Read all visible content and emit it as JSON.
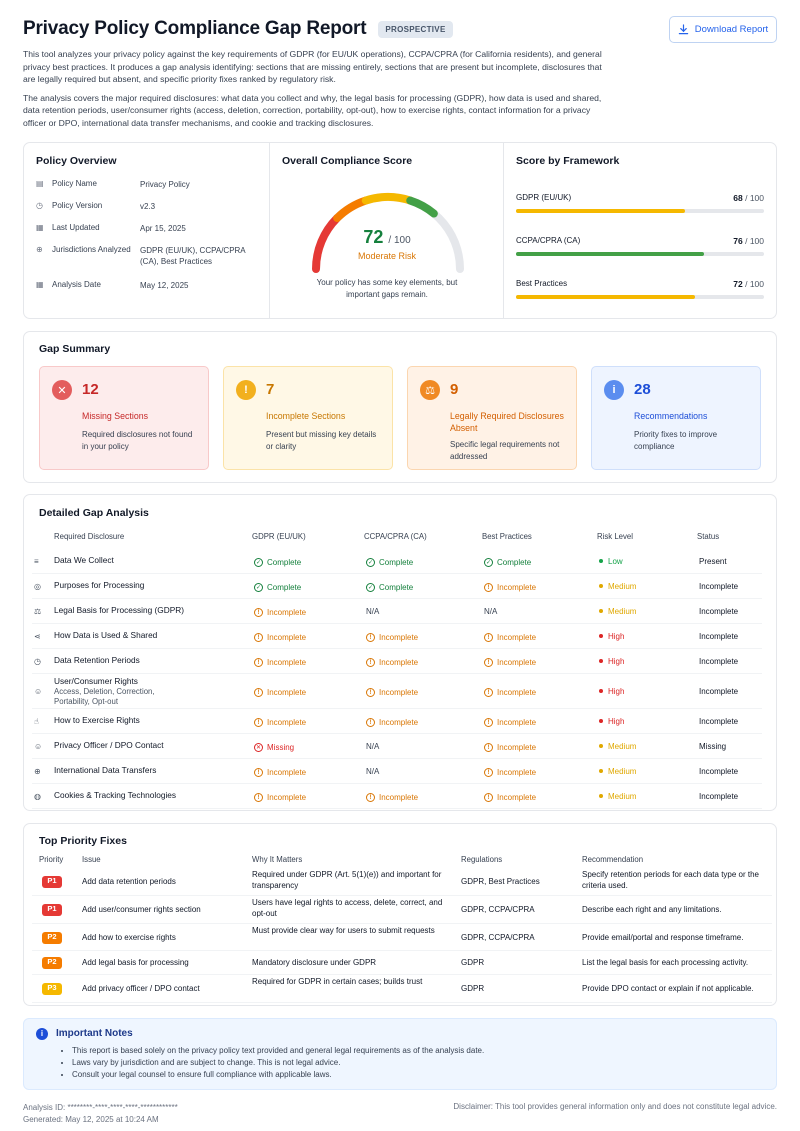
{
  "header": {
    "title": "Privacy Policy Compliance Gap Report",
    "badge": "PROSPECTIVE",
    "download_label": "Download Report",
    "intro_p1": "This tool analyzes your privacy policy against the key requirements of GDPR (for EU/UK operations), CCPA/CPRA (for California residents), and general privacy best practices. It produces a gap analysis identifying: sections that are missing entirely, sections that are present but incomplete, disclosures that are legally required but absent, and specific priority fixes ranked by regulatory risk.",
    "intro_p2": "The analysis covers the major required disclosures: what data you collect and why, the legal basis for processing (GDPR), how data is used and shared, data retention periods, user/consumer rights (access, deletion, correction, portability, opt-out), how to exercise rights, contact information for a privacy officer or DPO, international data transfer mechanisms, and cookie and tracking disclosures."
  },
  "overview": {
    "title": "Policy Overview",
    "rows": [
      {
        "icon": "document-icon",
        "key": "Policy Name",
        "value": "Privacy Policy"
      },
      {
        "icon": "clock-icon",
        "key": "Policy Version",
        "value": "v2.3"
      },
      {
        "icon": "calendar-icon",
        "key": "Last Updated",
        "value": "Apr 15, 2025"
      },
      {
        "icon": "globe-icon",
        "key": "Jurisdictions Analyzed",
        "value": "GDPR (EU/UK), CCPA/CPRA (CA), Best Practices"
      },
      {
        "icon": "calendar-icon",
        "key": "Analysis Date",
        "value": "May 12, 2025"
      }
    ]
  },
  "score": {
    "title": "Overall Compliance Score",
    "value": "72",
    "max": "/ 100",
    "fraction": 0.72,
    "risk": "Moderate Risk",
    "message": "Your policy has some key elements, but important gaps remain."
  },
  "frameworks": {
    "title": "Score by Framework",
    "items": [
      {
        "name": "GDPR (EU/UK)",
        "score": "68",
        "max": "/ 100",
        "fraction": 0.68,
        "color": "#f5b800"
      },
      {
        "name": "CCPA/CPRA (CA)",
        "score": "76",
        "max": "/ 100",
        "fraction": 0.76,
        "color": "#43a047"
      },
      {
        "name": "Best Practices",
        "score": "72",
        "max": "/ 100",
        "fraction": 0.72,
        "color": "#f5b800"
      }
    ]
  },
  "gap_summary": {
    "title": "Gap Summary",
    "tiles": [
      {
        "icon": "x-circle-icon",
        "glyph": "✕",
        "count": "12",
        "label": "Missing Sections",
        "desc": "Required disclosures not found in your policy",
        "bg": "#fdecec",
        "border": "#f8c9c9",
        "accent": "#c62828",
        "icon_bg": "#e35d5d"
      },
      {
        "icon": "alert-circle-icon",
        "glyph": "!",
        "count": "7",
        "label": "Incomplete Sections",
        "desc": "Present but missing key details or clarity",
        "bg": "#fff8e6",
        "border": "#fbe3a8",
        "accent": "#c77700",
        "icon_bg": "#f2b01e"
      },
      {
        "icon": "scales-icon",
        "glyph": "⚖",
        "count": "9",
        "label": "Legally Required Disclosures Absent",
        "desc": "Specific legal requirements not addressed",
        "bg": "#fff2e6",
        "border": "#fbd6b0",
        "accent": "#d35f00",
        "icon_bg": "#f08a24"
      },
      {
        "icon": "info-icon",
        "glyph": "i",
        "count": "28",
        "label": "Recommendations",
        "desc": "Priority fixes to improve compliance",
        "bg": "#eef4ff",
        "border": "#cfdffb",
        "accent": "#1d4ed8",
        "icon_bg": "#5b8def"
      }
    ]
  },
  "detail": {
    "title": "Detailed Gap Analysis",
    "headers": [
      "Required Disclosure",
      "GDPR (EU/UK)",
      "CCPA/CPRA (CA)",
      "Best Practices",
      "Risk Level",
      "Status"
    ],
    "rows": [
      {
        "icon": "database-icon",
        "glyph": "≡",
        "name": "Data We Collect",
        "sub": "",
        "gdpr": "Complete",
        "ccpa": "Complete",
        "best": "Complete",
        "risk": "Low",
        "status": "Present"
      },
      {
        "icon": "target-icon",
        "glyph": "◎",
        "name": "Purposes for Processing",
        "sub": "",
        "gdpr": "Complete",
        "ccpa": "Complete",
        "best": "Incomplete",
        "risk": "Medium",
        "status": "Incomplete"
      },
      {
        "icon": "scales-icon",
        "glyph": "⚖",
        "name": "Legal Basis for Processing (GDPR)",
        "sub": "",
        "gdpr": "Incomplete",
        "ccpa": "N/A",
        "best": "N/A",
        "risk": "Medium",
        "status": "Incomplete"
      },
      {
        "icon": "share-icon",
        "glyph": "⋖",
        "name": "How Data is Used & Shared",
        "sub": "",
        "gdpr": "Incomplete",
        "ccpa": "Incomplete",
        "best": "Incomplete",
        "risk": "High",
        "status": "Incomplete"
      },
      {
        "icon": "clock-icon",
        "glyph": "◷",
        "name": "Data Retention Periods",
        "sub": "",
        "gdpr": "Incomplete",
        "ccpa": "Incomplete",
        "best": "Incomplete",
        "risk": "High",
        "status": "Incomplete"
      },
      {
        "icon": "user-icon",
        "glyph": "☺",
        "name": "User/Consumer Rights",
        "sub": "Access, Deletion, Correction, Portability, Opt-out",
        "gdpr": "Incomplete",
        "ccpa": "Incomplete",
        "best": "Incomplete",
        "risk": "High",
        "status": "Incomplete"
      },
      {
        "icon": "hand-pointer-icon",
        "glyph": "☝",
        "name": "How to Exercise Rights",
        "sub": "",
        "gdpr": "Incomplete",
        "ccpa": "Incomplete",
        "best": "Incomplete",
        "risk": "High",
        "status": "Incomplete"
      },
      {
        "icon": "user-gear-icon",
        "glyph": "☺",
        "name": "Privacy Officer / DPO Contact",
        "sub": "",
        "gdpr": "Missing",
        "ccpa": "N/A",
        "best": "Incomplete",
        "risk": "Medium",
        "status": "Missing"
      },
      {
        "icon": "globe-icon",
        "glyph": "⊕",
        "name": "International Data Transfers",
        "sub": "",
        "gdpr": "Incomplete",
        "ccpa": "N/A",
        "best": "Incomplete",
        "risk": "Medium",
        "status": "Incomplete"
      },
      {
        "icon": "cookie-icon",
        "glyph": "◍",
        "name": "Cookies & Tracking Technologies",
        "sub": "",
        "gdpr": "Incomplete",
        "ccpa": "Incomplete",
        "best": "Incomplete",
        "risk": "Medium",
        "status": "Incomplete"
      }
    ],
    "colors": {
      "Complete": "#15803d",
      "Incomplete": "#d97706",
      "Missing": "#dc2626",
      "N/A": "#374151",
      "Low": "#16a34a",
      "Medium": "#e0a800",
      "High": "#dc2626"
    }
  },
  "priority": {
    "title": "Top Priority Fixes",
    "headers": [
      "Priority",
      "Issue",
      "Why It Matters",
      "Regulations",
      "Recommendation"
    ],
    "rows": [
      {
        "p": "P1",
        "color": "#e53935",
        "issue": "Add data retention periods",
        "why": "Required under GDPR (Art. 5(1)(e)) and important for transparency",
        "regs": "GDPR, Best Practices",
        "rec": "Specify retention periods for each data type or the criteria used."
      },
      {
        "p": "P1",
        "color": "#e53935",
        "issue": "Add user/consumer rights section",
        "why": "Users have legal rights to access, delete, correct, and opt-out",
        "regs": "GDPR, CCPA/CPRA",
        "rec": "Describe each right and any limitations."
      },
      {
        "p": "P2",
        "color": "#f57c00",
        "issue": "Add how to exercise rights",
        "why": "Must provide clear way for users to submit requests",
        "regs": "GDPR, CCPA/CPRA",
        "rec": "Provide email/portal and response timeframe."
      },
      {
        "p": "P2",
        "color": "#f57c00",
        "issue": "Add legal basis for processing",
        "why": "Mandatory disclosure under GDPR",
        "regs": "GDPR",
        "rec": "List the legal basis for each processing activity."
      },
      {
        "p": "P3",
        "color": "#f5b800",
        "issue": "Add privacy officer / DPO contact",
        "why": "Required for GDPR in certain cases; builds trust",
        "regs": "GDPR",
        "rec": "Provide DPO contact or explain if not applicable."
      }
    ]
  },
  "notes": {
    "title": "Important Notes",
    "items": [
      "This report is based solely on the privacy policy text provided and general legal requirements as of the analysis date.",
      "Laws vary by jurisdiction and are subject to change. This is not legal advice.",
      "Consult your legal counsel to ensure full compliance with applicable laws."
    ]
  },
  "footer": {
    "analysis_id": "Analysis ID: ********-****-****-****-************",
    "generated": "Generated: May 12, 2025 at 10:24 AM",
    "disclaimer": "Disclaimer: This tool provides general information only and does not constitute legal advice."
  }
}
